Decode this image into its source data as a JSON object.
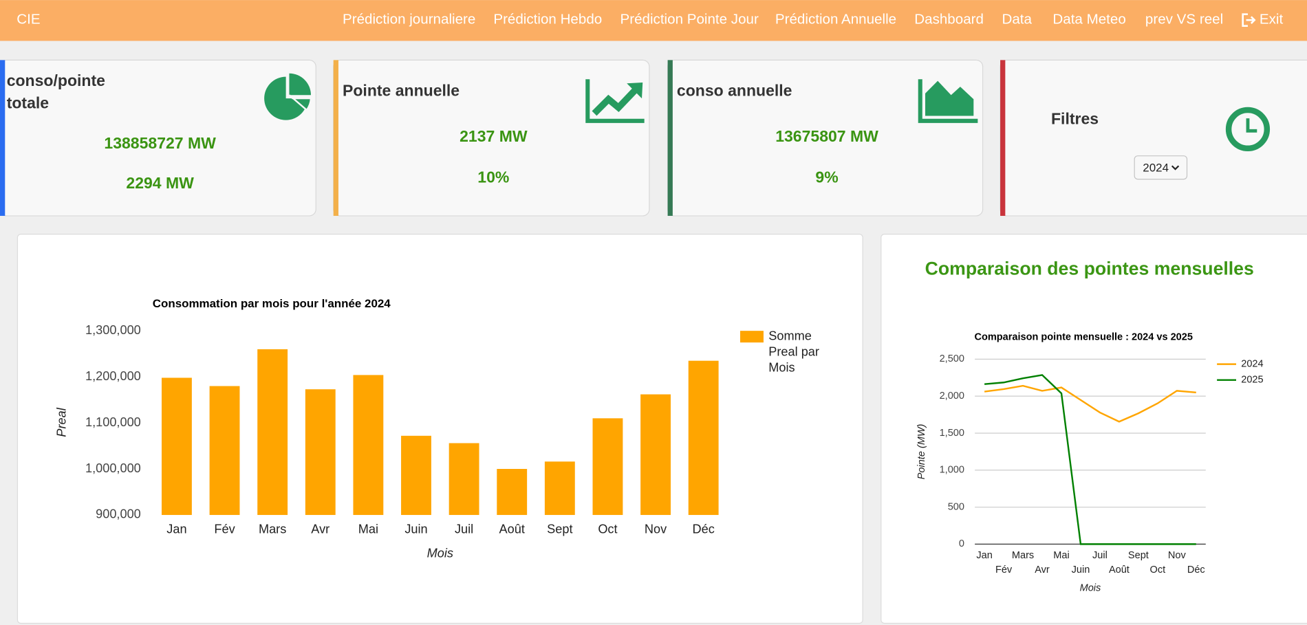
{
  "nav": {
    "brand": "CIE",
    "links": [
      "Prédiction journaliere",
      "Prédiction Hebdo",
      "Prédiction Pointe Jour",
      "Prédiction Annuelle",
      "Dashboard",
      "Data",
      "Data Meteo",
      "prev VS reel"
    ],
    "exit": "Exit"
  },
  "cards": [
    {
      "title": "conso/pointe totale",
      "values": [
        "138858727 MW",
        "2294 MW"
      ]
    },
    {
      "title": "Pointe annuelle",
      "values": [
        "2137 MW",
        "10%"
      ]
    },
    {
      "title": "conso annuelle",
      "values": [
        "13675807 MW",
        "9%"
      ]
    }
  ],
  "filter": {
    "title": "Filtres",
    "selected": "2024"
  },
  "panel_title": "Comparaison des pointes mensuelles",
  "chart_data": [
    {
      "type": "bar",
      "title": "Consommation par mois pour l'année 2024",
      "x_label": "Mois",
      "y_label": "Preal",
      "categories": [
        "Jan",
        "Fév",
        "Mars",
        "Avr",
        "Mai",
        "Juin",
        "Juil",
        "Août",
        "Sept",
        "Oct",
        "Nov",
        "Déc"
      ],
      "series": [
        {
          "name": "Somme Preal par Mois",
          "color": "#ffa500",
          "values": [
            1198000,
            1180000,
            1260000,
            1173000,
            1204000,
            1072000,
            1056000,
            1000000,
            1016000,
            1110000,
            1162000,
            1235000
          ]
        }
      ],
      "ylim": [
        900000,
        1300000
      ],
      "yticks": [
        {
          "value": 900000,
          "label": "900,000"
        },
        {
          "value": 1000000,
          "label": "1,000,000"
        },
        {
          "value": 1100000,
          "label": "1,100,000"
        },
        {
          "value": 1200000,
          "label": "1,200,000"
        },
        {
          "value": 1300000,
          "label": "1,300,000"
        }
      ],
      "grid": false,
      "legend": "right"
    },
    {
      "type": "line",
      "title": "Comparaison pointe mensuelle : 2024 vs 2025",
      "x_label": "Mois",
      "y_label": "Pointe (MW)",
      "categories": [
        "Jan",
        "Fév",
        "Mars",
        "Avr",
        "Mai",
        "Juin",
        "Juil",
        "Août",
        "Sept",
        "Oct",
        "Nov",
        "Déc"
      ],
      "series": [
        {
          "name": "2024",
          "color": "#ffa500",
          "values": [
            2061,
            2095,
            2140,
            2072,
            2117,
            1948,
            1779,
            1655,
            1768,
            1903,
            2072,
            2050
          ]
        },
        {
          "name": "2025",
          "color": "#008000",
          "values": [
            2162,
            2185,
            2241,
            2286,
            2038,
            0,
            0,
            0,
            0,
            0,
            0,
            0
          ]
        }
      ],
      "ylim": [
        0,
        2500
      ],
      "yticks": [
        0,
        500,
        {
          "value": 1000,
          "label": "1,000"
        },
        {
          "value": 1500,
          "label": "1,500"
        },
        {
          "value": 2000,
          "label": "2,000"
        },
        {
          "value": 2500,
          "label": "2,500"
        }
      ],
      "grid": true,
      "legend": "right"
    }
  ]
}
